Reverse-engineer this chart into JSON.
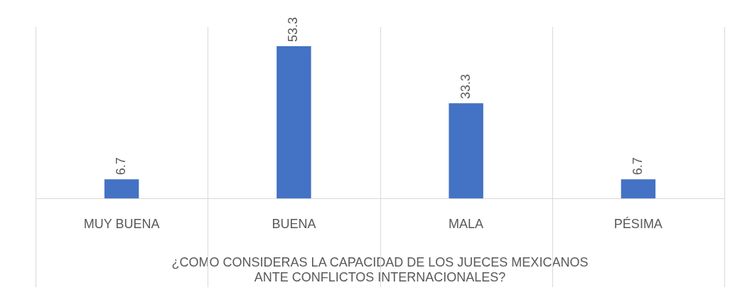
{
  "chart_data": {
    "type": "bar",
    "xlabel": "¿COMO CONSIDERAS LA CAPACIDAD DE LOS JUECES MEXICANOS\nANTE CONFLICTOS INTERNACIONALES?",
    "categories": [
      "MUY BUENA",
      "BUENA",
      "MALA",
      "PÉSIMA"
    ],
    "values": [
      6.7,
      53.3,
      33.3,
      6.7
    ],
    "color": "#4472c4",
    "relative": false,
    "data_labels": true,
    "grid": "x",
    "legend": false
  }
}
